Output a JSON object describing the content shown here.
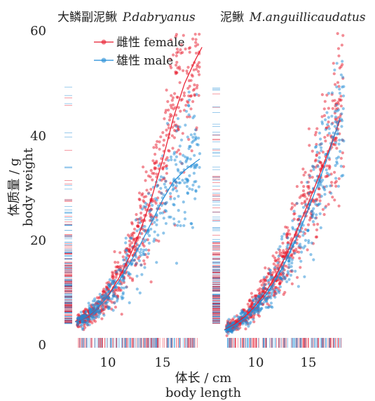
{
  "chart_data": {
    "type": "scatter",
    "ylabel_lines": [
      "体质量 / g",
      "body weight"
    ],
    "xlabel_lines": [
      "体长 / cm",
      "body length"
    ],
    "ylim": [
      0,
      60
    ],
    "yticks": [
      0,
      20,
      40,
      60
    ],
    "xticks": [
      10,
      15
    ],
    "legend": {
      "placement": "top-left",
      "entries": [
        {
          "label": "雌性  female",
          "color": "#e8192c"
        },
        {
          "label": "雄性  male",
          "color": "#1f8bd6"
        }
      ]
    },
    "panels": [
      {
        "title_cn": "大鳞副泥鳅",
        "title_latin": "P.dabryanus",
        "xlim": [
          6.5,
          19
        ],
        "series": [
          {
            "name": "female",
            "color": "#e8192c",
            "fit": {
              "x": [
                7.0,
                8,
                9,
                10,
                11,
                12,
                13,
                14,
                15,
                16,
                17,
                18,
                18.6
              ],
              "y": [
                4.5,
                5.2,
                6.9,
                9.4,
                12.8,
                17.0,
                22.1,
                28.2,
                35.4,
                43.6,
                50.0,
                54.6,
                57.0
              ]
            }
          },
          {
            "name": "male",
            "color": "#1f8bd6",
            "fit": {
              "x": [
                7.0,
                8,
                9,
                10,
                11,
                12,
                13,
                14,
                15,
                16,
                17,
                18,
                18.4
              ],
              "y": [
                4.4,
                5.3,
                7.0,
                9.3,
                12.2,
                15.6,
                19.4,
                23.5,
                27.8,
                31.3,
                33.4,
                35.0,
                35.6
              ]
            }
          }
        ]
      },
      {
        "title_cn": "泥鳅",
        "title_latin": "M.anguillicaudatus",
        "xlim": [
          6.5,
          18.5
        ],
        "series": [
          {
            "name": "female",
            "color": "#e8192c",
            "fit": {
              "x": [
                7.0,
                8,
                9,
                10,
                11,
                12,
                13,
                14,
                15,
                16,
                17,
                18
              ],
              "y": [
                2.9,
                4.0,
                5.5,
                7.6,
                10.3,
                13.7,
                17.7,
                22.4,
                27.2,
                32.3,
                37.6,
                43.0
              ]
            }
          },
          {
            "name": "male",
            "color": "#1f8bd6",
            "fit": {
              "x": [
                7.0,
                8,
                9,
                10,
                11,
                12,
                13,
                14,
                15,
                16,
                17,
                18
              ],
              "y": [
                2.8,
                3.8,
                5.2,
                7.1,
                9.6,
                12.8,
                16.6,
                21.0,
                26.0,
                31.3,
                37.0,
                43.5
              ]
            }
          }
        ]
      }
    ]
  }
}
